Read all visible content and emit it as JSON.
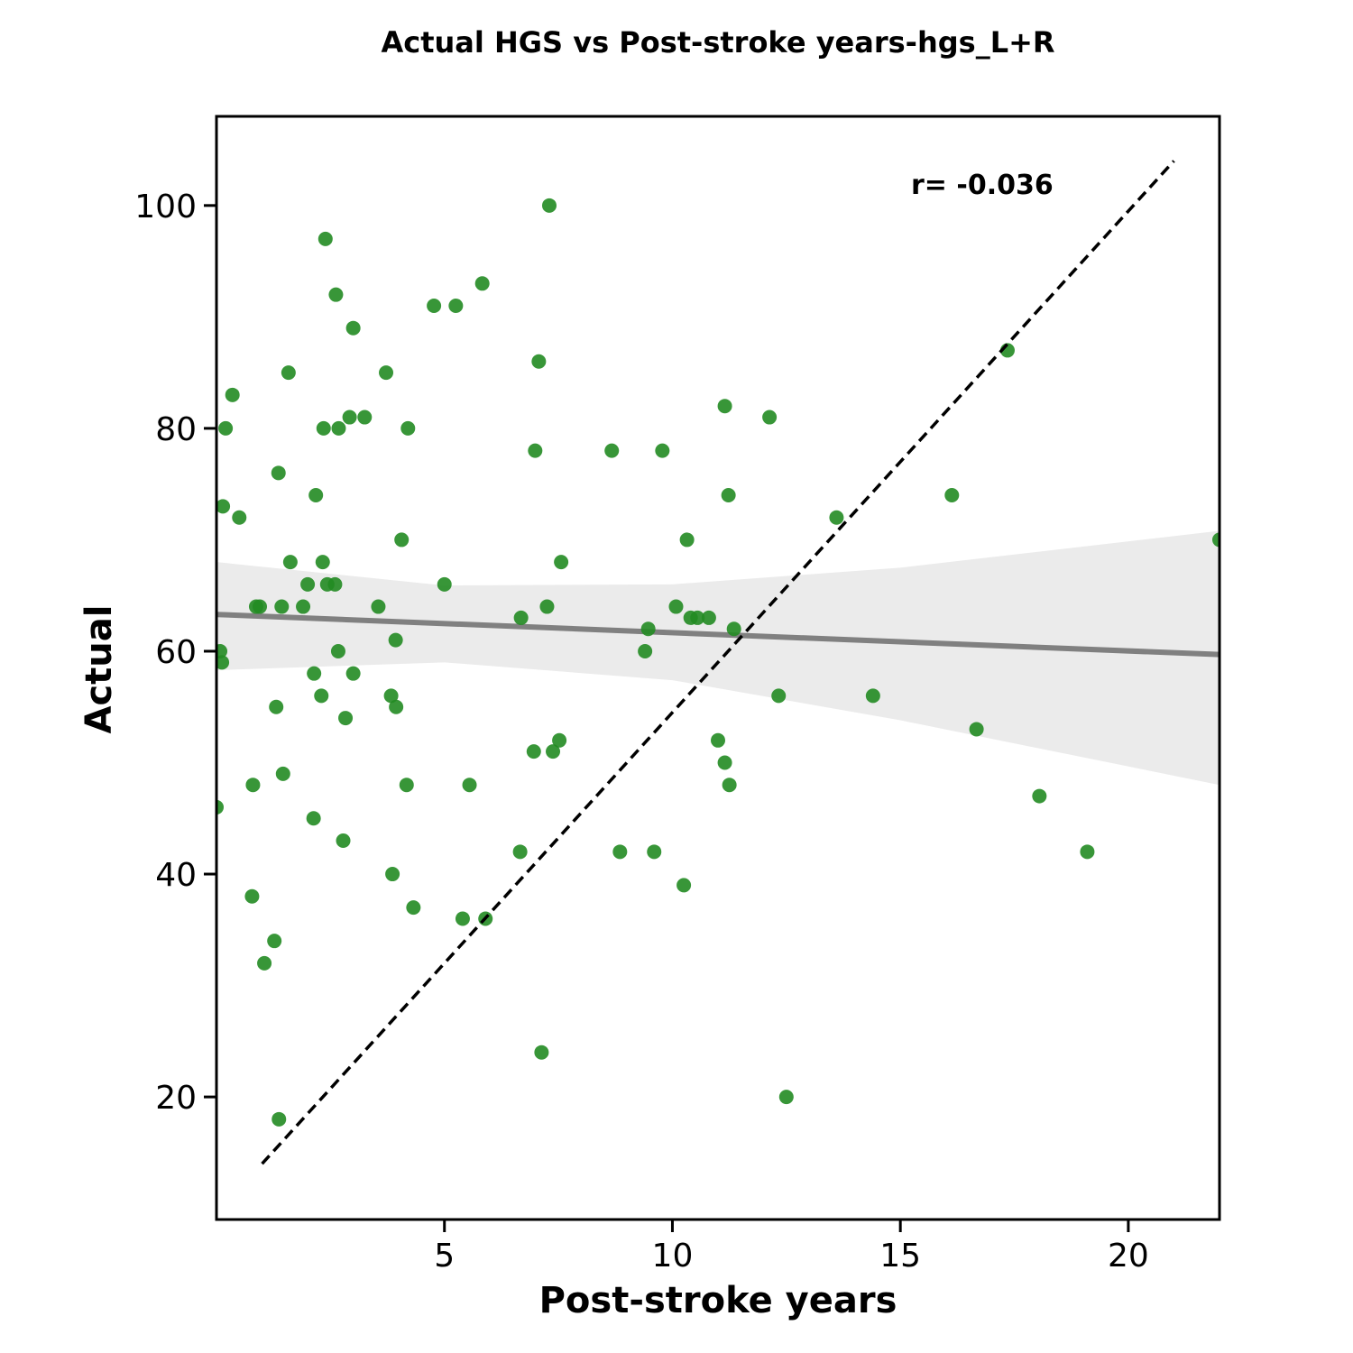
{
  "chart_data": {
    "type": "scatter",
    "title": "Actual HGS vs Post-stroke years-hgs_L+R",
    "xlabel": "Post-stroke years",
    "ylabel": "Actual",
    "xlim": [
      0,
      22
    ],
    "ylim": [
      9,
      108
    ],
    "xticks": [
      5,
      10,
      15,
      20
    ],
    "yticks": [
      20,
      40,
      60,
      80,
      100
    ],
    "grid": false,
    "annotation": "r= -0.036",
    "colors": {
      "points": "#228B22",
      "regression": "#808080",
      "confidence_band": "#EBEBEB",
      "identity_line": "#000000"
    },
    "regression_line": {
      "x": [
        0,
        22
      ],
      "y": [
        63.3,
        59.7
      ]
    },
    "confidence_band": {
      "x": [
        0,
        5,
        10,
        15,
        22
      ],
      "upper": [
        68.0,
        65.9,
        66.0,
        67.5,
        70.8
      ],
      "lower": [
        58.3,
        59.0,
        57.4,
        53.8,
        48.0
      ]
    },
    "identity_line": {
      "x": [
        1,
        21
      ],
      "y": [
        14,
        104
      ]
    },
    "points": [
      {
        "x": 0.0,
        "y": 46
      },
      {
        "x": 0.08,
        "y": 60
      },
      {
        "x": 0.12,
        "y": 59
      },
      {
        "x": 0.14,
        "y": 73
      },
      {
        "x": 0.2,
        "y": 80
      },
      {
        "x": 0.35,
        "y": 83
      },
      {
        "x": 0.5,
        "y": 72
      },
      {
        "x": 0.78,
        "y": 38
      },
      {
        "x": 0.8,
        "y": 48
      },
      {
        "x": 0.87,
        "y": 64
      },
      {
        "x": 0.95,
        "y": 64
      },
      {
        "x": 1.05,
        "y": 32
      },
      {
        "x": 1.27,
        "y": 34
      },
      {
        "x": 1.31,
        "y": 55
      },
      {
        "x": 1.36,
        "y": 76
      },
      {
        "x": 1.37,
        "y": 18
      },
      {
        "x": 1.43,
        "y": 64
      },
      {
        "x": 1.46,
        "y": 49
      },
      {
        "x": 1.58,
        "y": 85
      },
      {
        "x": 1.62,
        "y": 68
      },
      {
        "x": 1.9,
        "y": 64
      },
      {
        "x": 2.0,
        "y": 66
      },
      {
        "x": 2.13,
        "y": 45
      },
      {
        "x": 2.14,
        "y": 58
      },
      {
        "x": 2.18,
        "y": 74
      },
      {
        "x": 2.3,
        "y": 56
      },
      {
        "x": 2.33,
        "y": 68
      },
      {
        "x": 2.35,
        "y": 80
      },
      {
        "x": 2.39,
        "y": 97
      },
      {
        "x": 2.43,
        "y": 66
      },
      {
        "x": 2.6,
        "y": 66
      },
      {
        "x": 2.62,
        "y": 92
      },
      {
        "x": 2.67,
        "y": 60
      },
      {
        "x": 2.68,
        "y": 80
      },
      {
        "x": 2.78,
        "y": 43
      },
      {
        "x": 2.83,
        "y": 54
      },
      {
        "x": 2.92,
        "y": 81
      },
      {
        "x": 3.0,
        "y": 58
      },
      {
        "x": 3.0,
        "y": 89
      },
      {
        "x": 3.25,
        "y": 81
      },
      {
        "x": 3.55,
        "y": 64
      },
      {
        "x": 3.72,
        "y": 85
      },
      {
        "x": 3.83,
        "y": 56
      },
      {
        "x": 3.86,
        "y": 40
      },
      {
        "x": 3.93,
        "y": 61
      },
      {
        "x": 3.94,
        "y": 55
      },
      {
        "x": 4.06,
        "y": 70
      },
      {
        "x": 4.17,
        "y": 48
      },
      {
        "x": 4.2,
        "y": 80
      },
      {
        "x": 4.32,
        "y": 37
      },
      {
        "x": 4.77,
        "y": 91
      },
      {
        "x": 5.0,
        "y": 66
      },
      {
        "x": 5.25,
        "y": 91
      },
      {
        "x": 5.4,
        "y": 36
      },
      {
        "x": 5.55,
        "y": 48
      },
      {
        "x": 5.83,
        "y": 93
      },
      {
        "x": 5.9,
        "y": 36
      },
      {
        "x": 6.66,
        "y": 42
      },
      {
        "x": 6.68,
        "y": 63
      },
      {
        "x": 6.96,
        "y": 51
      },
      {
        "x": 6.99,
        "y": 78
      },
      {
        "x": 7.07,
        "y": 86
      },
      {
        "x": 7.13,
        "y": 24
      },
      {
        "x": 7.25,
        "y": 64
      },
      {
        "x": 7.3,
        "y": 100
      },
      {
        "x": 7.38,
        "y": 51
      },
      {
        "x": 7.52,
        "y": 52
      },
      {
        "x": 7.56,
        "y": 68
      },
      {
        "x": 8.67,
        "y": 78
      },
      {
        "x": 8.85,
        "y": 42
      },
      {
        "x": 9.4,
        "y": 60
      },
      {
        "x": 9.47,
        "y": 62
      },
      {
        "x": 9.6,
        "y": 42
      },
      {
        "x": 9.78,
        "y": 78
      },
      {
        "x": 10.08,
        "y": 64
      },
      {
        "x": 10.25,
        "y": 39
      },
      {
        "x": 10.32,
        "y": 70
      },
      {
        "x": 10.4,
        "y": 63
      },
      {
        "x": 10.55,
        "y": 63
      },
      {
        "x": 10.8,
        "y": 63
      },
      {
        "x": 11.0,
        "y": 52
      },
      {
        "x": 11.15,
        "y": 50
      },
      {
        "x": 11.15,
        "y": 82
      },
      {
        "x": 11.23,
        "y": 74
      },
      {
        "x": 11.25,
        "y": 48
      },
      {
        "x": 11.35,
        "y": 62
      },
      {
        "x": 12.13,
        "y": 81
      },
      {
        "x": 12.33,
        "y": 56
      },
      {
        "x": 12.5,
        "y": 20
      },
      {
        "x": 13.6,
        "y": 72
      },
      {
        "x": 14.4,
        "y": 56
      },
      {
        "x": 16.13,
        "y": 74
      },
      {
        "x": 16.67,
        "y": 53
      },
      {
        "x": 17.35,
        "y": 87
      },
      {
        "x": 18.05,
        "y": 47
      },
      {
        "x": 19.1,
        "y": 42
      },
      {
        "x": 22.0,
        "y": 70
      }
    ]
  }
}
